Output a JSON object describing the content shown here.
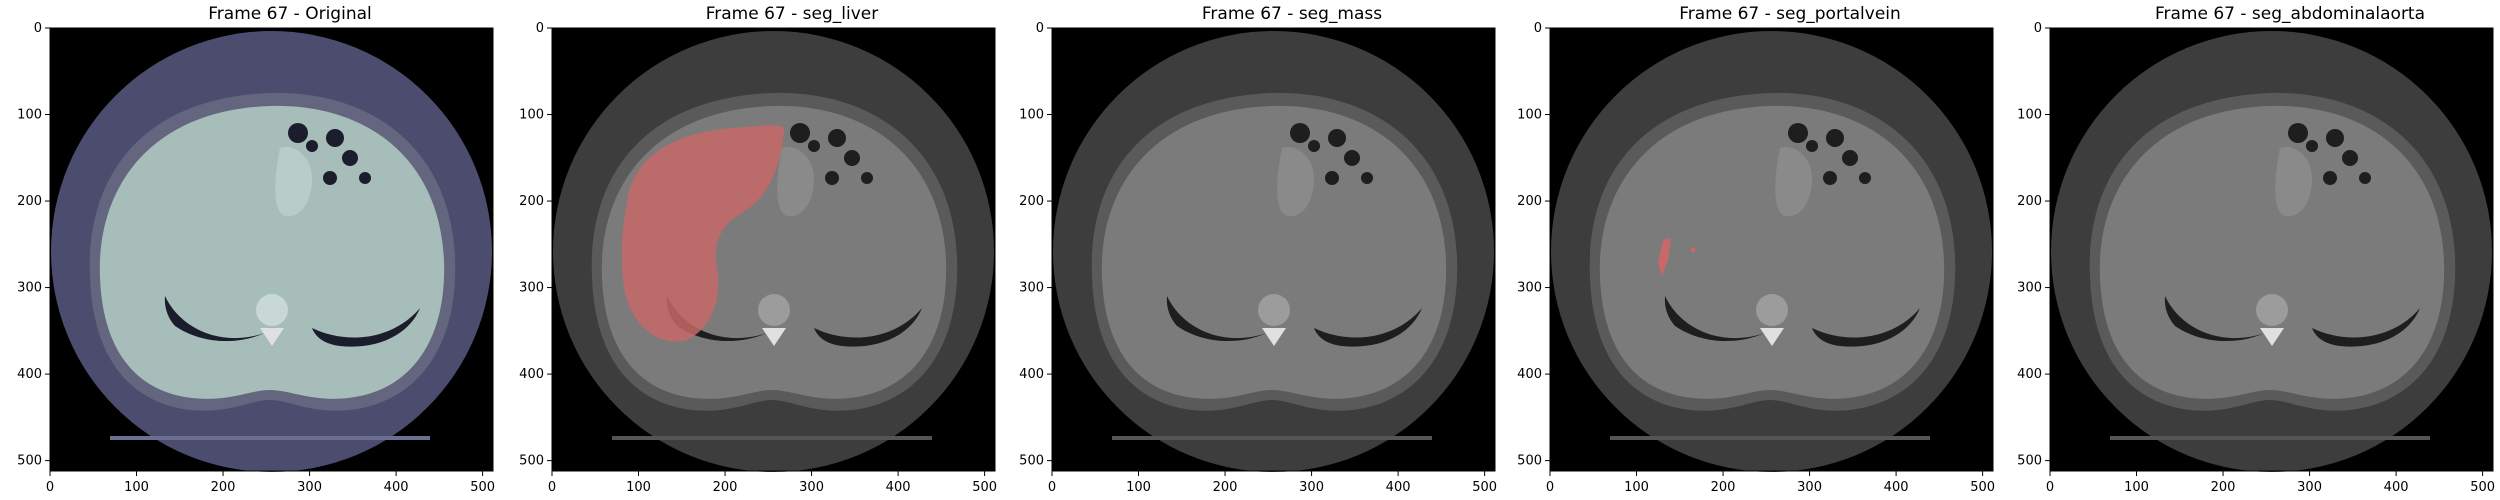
{
  "figure": {
    "panels": [
      {
        "title": "Frame 67 - Original",
        "style": "original",
        "overlay": "none"
      },
      {
        "title": "Frame 67 - seg_liver",
        "style": "gray",
        "overlay": "liver"
      },
      {
        "title": "Frame 67 - seg_mass",
        "style": "gray",
        "overlay": "none"
      },
      {
        "title": "Frame 67 - seg_portalvein",
        "style": "gray",
        "overlay": "portalvein"
      },
      {
        "title": "Frame 67 - seg_abdominalaorta",
        "style": "gray",
        "overlay": "none"
      }
    ],
    "xticks": [
      "0",
      "100",
      "200",
      "300",
      "400",
      "500"
    ],
    "yticks": [
      "0",
      "100",
      "200",
      "300",
      "400",
      "500"
    ],
    "colors": {
      "original_body": "#a6bdb9",
      "original_bg": "#4b4c6e",
      "gray_body": "#7b7b7b",
      "gray_bg": "#3d3d3d",
      "overlay": "#c86868"
    }
  }
}
